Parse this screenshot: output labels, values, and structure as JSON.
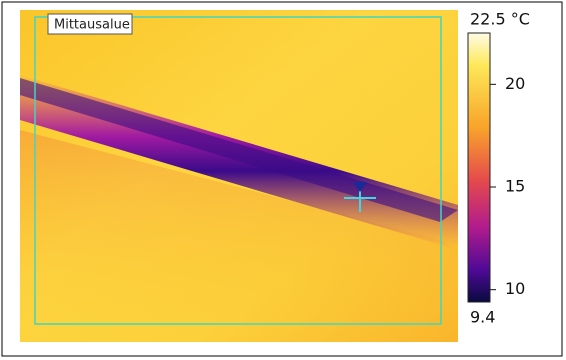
{
  "image": {
    "region_label": "Mittausalue"
  },
  "scale": {
    "max": {
      "value": 22.5,
      "label": "22.5 °C"
    },
    "min": {
      "value": 9.4,
      "label": "9.4"
    },
    "ticks": [
      20,
      15,
      10
    ]
  }
}
